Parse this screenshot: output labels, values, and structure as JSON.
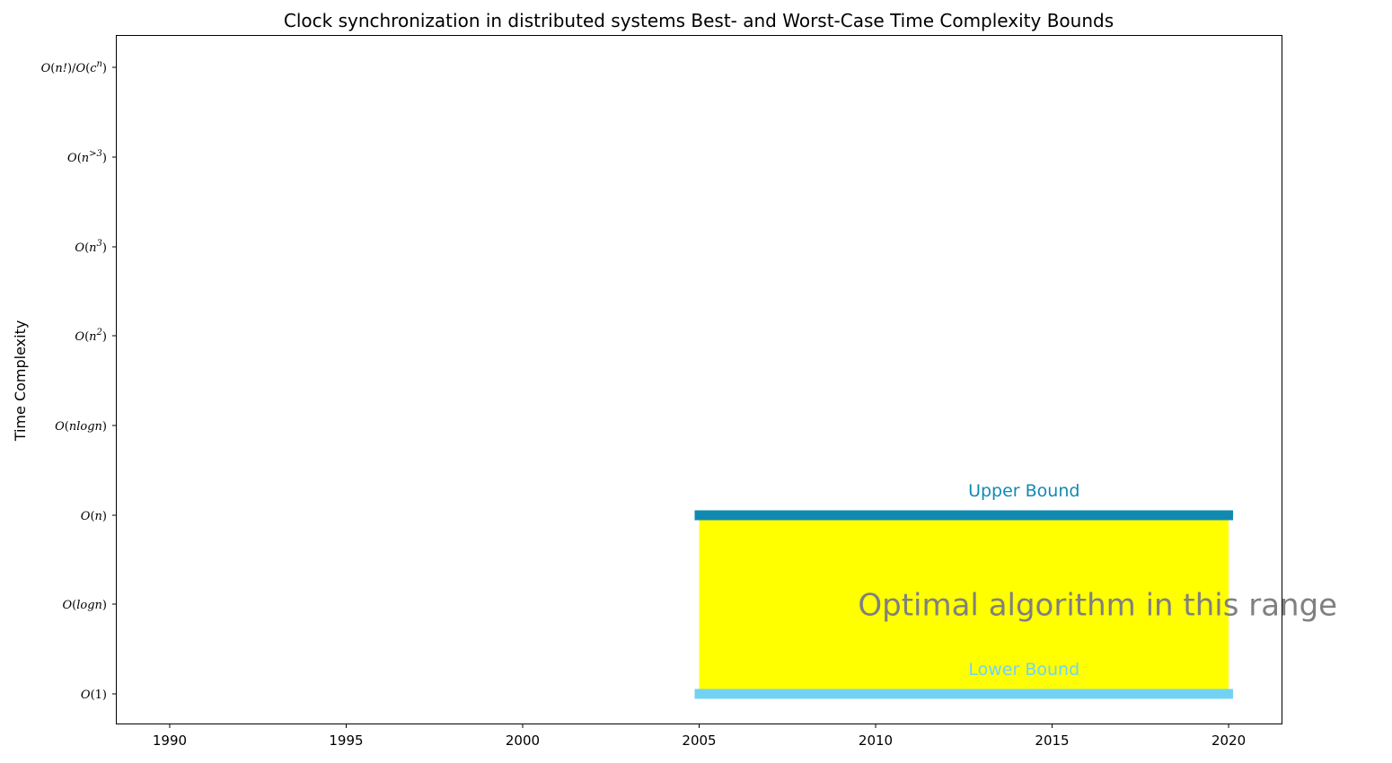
{
  "chart_data": {
    "type": "bar",
    "title": "Clock synchronization in distributed systems Best- and Worst-Case Time Complexity Bounds",
    "xlabel": "",
    "ylabel": "Time Complexity",
    "xlim": [
      1988.5,
      2021.5
    ],
    "x_ticks": [
      1990,
      1995,
      2000,
      2005,
      2010,
      2015,
      2020
    ],
    "y_categories": [
      [
        "O",
        "(1)"
      ],
      [
        "O",
        "(",
        "logn",
        ")"
      ],
      [
        "O",
        "(",
        "n",
        ")"
      ],
      [
        "O",
        "(",
        "nlogn",
        ")"
      ],
      [
        "O",
        "(",
        "n",
        "2",
        ")"
      ],
      [
        "O",
        "(",
        "n",
        "3",
        ")"
      ],
      [
        "O",
        "(",
        "n",
        ">3",
        ")"
      ],
      [
        "O",
        "(",
        "n!",
        ")/",
        "O",
        "(",
        "c",
        "n",
        ")"
      ]
    ],
    "upper_bound": {
      "label": "Upper Bound",
      "level": "O(n)",
      "start": 2005,
      "end": 2020,
      "color": "#118ab2"
    },
    "lower_bound": {
      "label": "Lower Bound",
      "level": "O(1)",
      "start": 2005,
      "end": 2020,
      "color": "#73d2f3"
    },
    "optimal_range": {
      "label": "Optimal algorithm in this range",
      "start": 2005,
      "end": 2020,
      "from": "O(1)",
      "to": "O(n)",
      "fill_color": "#ffff00",
      "text_color": "#808080"
    }
  }
}
